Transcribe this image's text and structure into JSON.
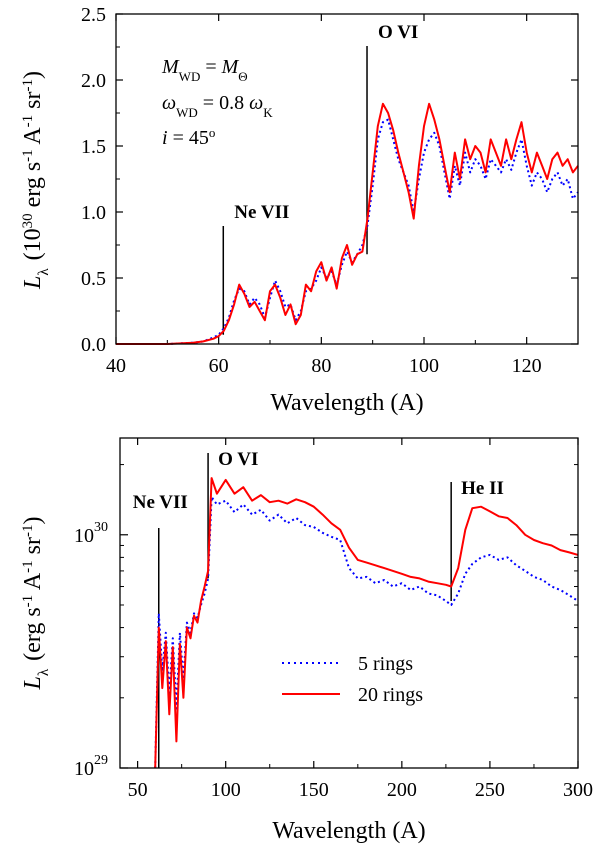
{
  "chart_data": [
    {
      "type": "line",
      "xlabel": "Wavelength (A)",
      "ylabel_main": "L",
      "ylabel_sub": "λ",
      "ylabel_open": "(10",
      "ylabel_exp": "30",
      "ylabel_rest": " erg s",
      "ylabel_m1a": "-1",
      "ylabel_a": " A",
      "ylabel_m1b": "-1",
      "ylabel_sr": " sr",
      "ylabel_m1c": "-1",
      "ylabel_close": ")",
      "xlim": [
        40,
        130
      ],
      "ylim": [
        0,
        2.5
      ],
      "xticks": [
        "40",
        "60",
        "80",
        "100",
        "120"
      ],
      "yticks": [
        "0.0",
        "0.5",
        "1.0",
        "1.5",
        "2.0",
        "2.5"
      ],
      "params": {
        "m_label": "M",
        "m_sub": "WD",
        "m_eq": " = ",
        "msun_label": "M",
        "msun_sub": "Θ",
        "omega_label": "ω",
        "omega_sub": "WD",
        "omega_eq": " = 0.8 ",
        "omegak_label": "ω",
        "omegak_sub": "K",
        "incl_label": "i",
        "incl_eq": " = 45",
        "incl_sup": "o"
      },
      "annotations": [
        {
          "text": "Ne VII",
          "x": 60.9
        },
        {
          "text": "O VI",
          "x": 88.9
        }
      ],
      "series": [
        {
          "name": "5 rings",
          "color": "#0000ff",
          "style": "dotted",
          "x": [
            40,
            50,
            55,
            57,
            59,
            60,
            61,
            62,
            63,
            64,
            65,
            66,
            67,
            68,
            69,
            70,
            71,
            72,
            73,
            74,
            75,
            76,
            77,
            78,
            79,
            80,
            81,
            82,
            83,
            84,
            85,
            86,
            87,
            88,
            89,
            90,
            91,
            92,
            93,
            94,
            95,
            96,
            97,
            98,
            99,
            100,
            101,
            102,
            103,
            104,
            105,
            106,
            107,
            108,
            109,
            110,
            111,
            112,
            113,
            114,
            115,
            116,
            117,
            118,
            119,
            120,
            121,
            122,
            123,
            124,
            125,
            126,
            127,
            128,
            129,
            130
          ],
          "y": [
            0,
            0,
            0.01,
            0.02,
            0.05,
            0.07,
            0.12,
            0.2,
            0.33,
            0.42,
            0.4,
            0.3,
            0.35,
            0.3,
            0.2,
            0.35,
            0.48,
            0.4,
            0.28,
            0.3,
            0.18,
            0.25,
            0.4,
            0.42,
            0.48,
            0.58,
            0.5,
            0.55,
            0.45,
            0.6,
            0.7,
            0.62,
            0.68,
            0.75,
            0.9,
            1.2,
            1.55,
            1.68,
            1.7,
            1.55,
            1.4,
            1.3,
            1.2,
            1.0,
            1.25,
            1.45,
            1.55,
            1.6,
            1.5,
            1.3,
            1.1,
            1.35,
            1.2,
            1.45,
            1.3,
            1.4,
            1.35,
            1.25,
            1.4,
            1.35,
            1.3,
            1.4,
            1.32,
            1.45,
            1.55,
            1.35,
            1.2,
            1.3,
            1.25,
            1.15,
            1.25,
            1.3,
            1.2,
            1.25,
            1.1,
            1.15
          ]
        },
        {
          "name": "20 rings",
          "color": "#ff0000",
          "style": "solid",
          "x": [
            40,
            50,
            55,
            57,
            59,
            60,
            61,
            62,
            63,
            64,
            65,
            66,
            67,
            68,
            69,
            70,
            71,
            72,
            73,
            74,
            75,
            76,
            77,
            78,
            79,
            80,
            81,
            82,
            83,
            84,
            85,
            86,
            87,
            88,
            89,
            90,
            91,
            92,
            93,
            94,
            95,
            96,
            97,
            98,
            99,
            100,
            101,
            102,
            103,
            104,
            105,
            106,
            107,
            108,
            109,
            110,
            111,
            112,
            113,
            114,
            115,
            116,
            117,
            118,
            119,
            120,
            121,
            122,
            123,
            124,
            125,
            126,
            127,
            128,
            129,
            130
          ],
          "y": [
            0,
            0,
            0.01,
            0.02,
            0.04,
            0.06,
            0.1,
            0.18,
            0.3,
            0.45,
            0.38,
            0.28,
            0.32,
            0.25,
            0.18,
            0.4,
            0.45,
            0.35,
            0.22,
            0.3,
            0.15,
            0.22,
            0.45,
            0.4,
            0.55,
            0.62,
            0.48,
            0.58,
            0.42,
            0.65,
            0.75,
            0.6,
            0.68,
            0.7,
            0.95,
            1.3,
            1.65,
            1.82,
            1.75,
            1.62,
            1.45,
            1.3,
            1.15,
            0.95,
            1.35,
            1.65,
            1.82,
            1.7,
            1.55,
            1.35,
            1.15,
            1.45,
            1.25,
            1.55,
            1.4,
            1.5,
            1.45,
            1.3,
            1.55,
            1.45,
            1.35,
            1.55,
            1.4,
            1.55,
            1.68,
            1.45,
            1.3,
            1.45,
            1.35,
            1.25,
            1.4,
            1.45,
            1.35,
            1.4,
            1.3,
            1.35
          ]
        }
      ]
    },
    {
      "type": "line",
      "xlabel": "Wavelength (A)",
      "ylabel_main": "L",
      "ylabel_sub": "λ",
      "ylabel_open": "(erg s",
      "ylabel_m1a": "-1",
      "ylabel_a": " A",
      "ylabel_m1b": "-1",
      "ylabel_sr": " sr",
      "ylabel_m1c": "-1",
      "ylabel_close": ")",
      "yscale": "log",
      "xlim": [
        40,
        300
      ],
      "ylim": [
        1e+29,
        2.6e+30
      ],
      "xticks": [
        "50",
        "100",
        "150",
        "200",
        "250",
        "300"
      ],
      "yticks": [
        {
          "base": "10",
          "exp": "29",
          "value": 1e+29
        },
        {
          "base": "10",
          "exp": "30",
          "value": 1e+30
        }
      ],
      "annotations": [
        {
          "text": "Ne VII",
          "x": 62
        },
        {
          "text": "O VI",
          "x": 90
        },
        {
          "text": "He II",
          "x": 228
        }
      ],
      "legend": {
        "placement": "lower-center",
        "entries": [
          "5 rings",
          "20 rings"
        ]
      },
      "series": [
        {
          "name": "5 rings",
          "color": "#0000ff",
          "style": "dotted",
          "x": [
            60,
            62,
            64,
            66,
            68,
            70,
            72,
            74,
            76,
            78,
            80,
            82,
            84,
            86,
            88,
            90,
            92,
            95,
            100,
            105,
            110,
            115,
            120,
            125,
            130,
            135,
            140,
            145,
            150,
            155,
            160,
            165,
            170,
            175,
            180,
            185,
            190,
            195,
            200,
            205,
            210,
            215,
            220,
            225,
            228,
            232,
            236,
            240,
            245,
            250,
            255,
            260,
            265,
            270,
            275,
            280,
            285,
            290,
            295,
            300
          ],
          "y": [
            1e+29,
            4.6e+29,
            2.6e+29,
            3.8e+29,
            2.1e+29,
            3.6e+29,
            1.8e+29,
            3.8e+29,
            2.4e+29,
            4.2e+29,
            3.8e+29,
            4.6e+29,
            4.4e+29,
            5e+29,
            5.6e+29,
            6.5e+29,
            1.45e+30,
            1.35e+30,
            1.4e+30,
            1.25e+30,
            1.35e+30,
            1.22e+30,
            1.28e+30,
            1.15e+30,
            1.22e+30,
            1.12e+30,
            1.18e+30,
            1.1e+30,
            1.08e+30,
            1.02e+30,
            9.8e+29,
            9.5e+29,
            7.2e+29,
            6.5e+29,
            6.6e+29,
            6.2e+29,
            6.4e+29,
            6e+29,
            6.2e+29,
            5.8e+29,
            6e+29,
            5.6e+29,
            5.5e+29,
            5.2e+29,
            5e+29,
            5.6e+29,
            6.8e+29,
            7.5e+29,
            8e+29,
            8.2e+29,
            7.8e+29,
            8e+29,
            7.4e+29,
            7e+29,
            6.6e+29,
            6.4e+29,
            6e+29,
            5.8e+29,
            5.5e+29,
            5.2e+29
          ]
        },
        {
          "name": "20 rings",
          "color": "#ff0000",
          "style": "solid",
          "x": [
            60,
            62,
            64,
            66,
            68,
            70,
            72,
            74,
            76,
            78,
            80,
            82,
            84,
            86,
            88,
            90,
            92,
            95,
            100,
            105,
            110,
            115,
            120,
            125,
            130,
            135,
            140,
            145,
            150,
            155,
            160,
            165,
            170,
            175,
            180,
            185,
            190,
            195,
            200,
            205,
            210,
            215,
            220,
            225,
            228,
            232,
            236,
            240,
            245,
            250,
            255,
            260,
            265,
            270,
            275,
            280,
            285,
            290,
            295,
            300
          ],
          "y": [
            1e+29,
            4e+29,
            2.2e+29,
            3.5e+29,
            1.7e+29,
            3.3e+29,
            1.3e+29,
            3.4e+29,
            2e+29,
            4e+29,
            3.6e+29,
            4.5e+29,
            4.2e+29,
            5.2e+29,
            6e+29,
            7e+29,
            1.75e+30,
            1.5e+30,
            1.72e+30,
            1.5e+30,
            1.6e+30,
            1.4e+30,
            1.48e+30,
            1.38e+30,
            1.4e+30,
            1.36e+30,
            1.42e+30,
            1.38e+30,
            1.32e+30,
            1.22e+30,
            1.12e+30,
            1.05e+30,
            8.8e+29,
            7.8e+29,
            7.6e+29,
            7.4e+29,
            7.2e+29,
            7e+29,
            6.8e+29,
            6.6e+29,
            6.5e+29,
            6.3e+29,
            6.2e+29,
            6.1e+29,
            6e+29,
            7.2e+29,
            1.05e+30,
            1.3e+30,
            1.32e+30,
            1.26e+30,
            1.2e+30,
            1.18e+30,
            1.1e+30,
            1e+30,
            9.5e+29,
            9.2e+29,
            9e+29,
            8.6e+29,
            8.4e+29,
            8.2e+29
          ]
        }
      ]
    }
  ]
}
